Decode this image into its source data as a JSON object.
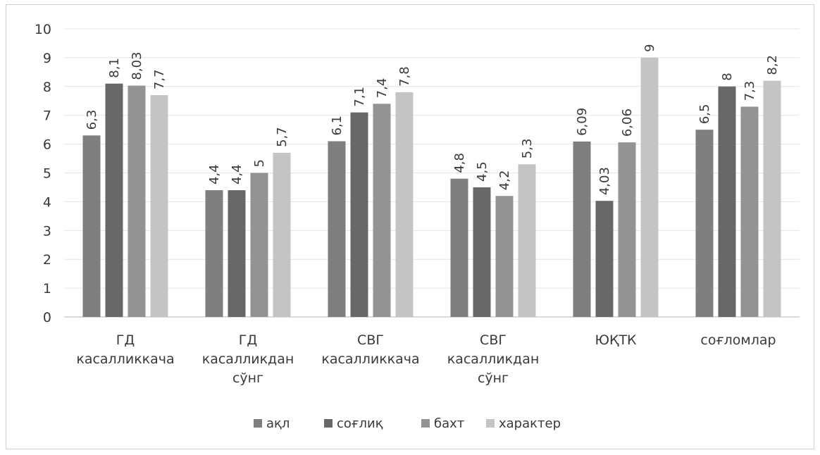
{
  "chart_data": {
    "type": "bar",
    "categories": [
      [
        "ГД",
        "касалликкача"
      ],
      [
        "ГД",
        "касалликдан",
        "сўнг"
      ],
      [
        "СВГ",
        "касалликкача"
      ],
      [
        "СВГ",
        "касалликдан",
        "сўнг"
      ],
      [
        "ЮҚТК"
      ],
      [
        "соғломлар"
      ]
    ],
    "series": [
      {
        "name": "ақл",
        "color": "#7f7f7f",
        "values": [
          6.3,
          4.4,
          6.1,
          4.8,
          6.09,
          6.5
        ],
        "labels": [
          "6,3",
          "4,4",
          "6,1",
          "4,8",
          "6,09",
          "6,5"
        ]
      },
      {
        "name": "соғлиқ",
        "color": "#686868",
        "values": [
          8.1,
          4.4,
          7.1,
          4.5,
          4.03,
          8.0
        ],
        "labels": [
          "8,1",
          "4,4",
          "7,1",
          "4,5",
          "4,03",
          "8"
        ]
      },
      {
        "name": "бахт",
        "color": "#939393",
        "values": [
          8.03,
          5.0,
          7.4,
          4.2,
          6.06,
          7.3
        ],
        "labels": [
          "8,03",
          "5",
          "7,4",
          "4,2",
          "6,06",
          "7,3"
        ]
      },
      {
        "name": "характер",
        "color": "#c4c4c4",
        "values": [
          7.7,
          5.7,
          7.8,
          5.3,
          9.0,
          8.2
        ],
        "labels": [
          "7,7",
          "5,7",
          "7,8",
          "5,3",
          "9",
          "8,2"
        ]
      }
    ],
    "ylim": [
      0,
      10
    ],
    "yticks": [
      "0",
      "1",
      "2",
      "3",
      "4",
      "5",
      "6",
      "7",
      "8",
      "9",
      "10"
    ],
    "grid": true,
    "legend": "bottom"
  }
}
